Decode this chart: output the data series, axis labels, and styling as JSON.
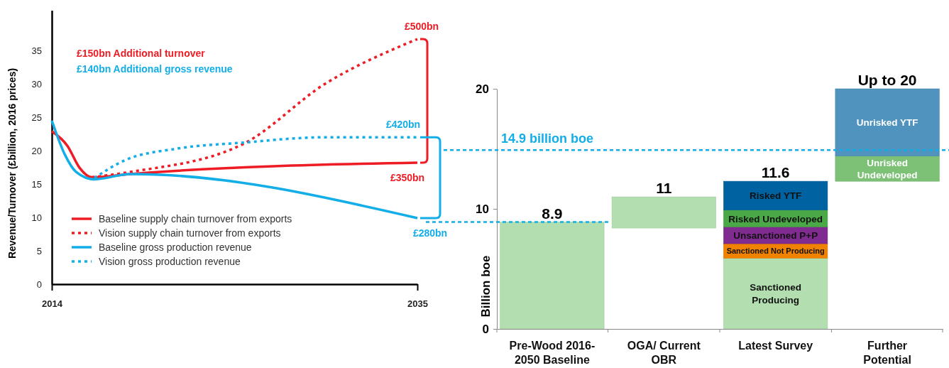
{
  "chart_data": [
    {
      "type": "line",
      "ylabel": "Revenue/Turnover (£billion, 2016 prices)",
      "xlim": [
        2014,
        2035
      ],
      "xticks": [
        2014,
        2035
      ],
      "ylim": [
        0,
        41
      ],
      "yticks": [
        0,
        5,
        10,
        15,
        20,
        25,
        30,
        35
      ],
      "grid": false,
      "legend": "bottom left",
      "marker": "none",
      "series": [
        {
          "name": "Baseline supply chain turnover from exports",
          "color": "#ee1c25",
          "line_style": "solid",
          "x": [
            2014,
            2014.9,
            2015.6,
            2016.3,
            2018.5,
            2035
          ],
          "values": [
            22.9,
            20.7,
            17.4,
            16.0,
            16.5,
            18.2
          ]
        },
        {
          "name": "Vision supply chain turnover from exports",
          "color": "#ee1c25",
          "line_style": "dotted",
          "x": [
            2016.3,
            2018.5,
            2025,
            2029.7,
            2035
          ],
          "values": [
            16.0,
            16.8,
            21.0,
            30.0,
            36.7
          ]
        },
        {
          "name": "Baseline gross production revenue",
          "color": "#13aee8",
          "line_style": "solid",
          "x": [
            2014,
            2014.75,
            2015.4,
            2016.45,
            2018.5,
            2035
          ],
          "values": [
            24.5,
            19.4,
            16.8,
            15.7,
            16.5,
            9.9
          ]
        },
        {
          "name": "Vision gross production revenue",
          "color": "#13aee8",
          "line_style": "dotted",
          "x": [
            2016.45,
            2018.15,
            2021.2,
            2025,
            2029.7,
            2035
          ],
          "values": [
            15.9,
            18.5,
            20.3,
            21.2,
            22.0,
            22.0
          ]
        }
      ],
      "annotations": [
        "£150bn Additional turnover",
        "£140bn Additional gross revenue",
        {
          "text": "£500bn",
          "x": 2035,
          "y": 36.7
        },
        {
          "text": "£350bn",
          "x": 2035,
          "y": 18.2
        },
        {
          "text": "£420bn",
          "x": 2035,
          "y": 22.0
        },
        {
          "text": "£280bn",
          "x": 2035,
          "y": 9.9
        }
      ]
    },
    {
      "type": "bar",
      "ylabel": "Billion boe",
      "categories": [
        "Pre-Wood 2016-2050 Baseline",
        "OGA/ Current OBR",
        "Latest Survey",
        "Further Potential"
      ],
      "ylim": [
        0,
        20
      ],
      "yticks": [
        0,
        10,
        20
      ],
      "grid": false,
      "legend": false,
      "series": [
        {
          "color": "#b3dfb0",
          "values": [
            8.9,
            2.6,
            5.9,
            null
          ],
          "base": [
            0,
            8.4,
            0,
            null
          ]
        },
        {
          "name": "Sanctioned Not Producing",
          "color": "#f08200",
          "values": [
            null,
            null,
            1.2,
            null
          ],
          "base": [
            null,
            null,
            5.9,
            null
          ]
        },
        {
          "name": "Unsanctioned P+P",
          "color": "#7f2b8f",
          "values": [
            null,
            null,
            1.4,
            null
          ],
          "base": [
            null,
            null,
            7.1,
            null
          ]
        },
        {
          "name": "Risked Undeveloped",
          "color": "#4aa847",
          "values": [
            null,
            null,
            1.4,
            null
          ],
          "base": [
            null,
            null,
            8.5,
            null
          ]
        },
        {
          "name": "Risked YTF",
          "color": "#0062a1",
          "values": [
            null,
            null,
            2.4,
            null
          ],
          "base": [
            null,
            null,
            9.9,
            null
          ]
        },
        {
          "name": "Unrisked Undeveloped",
          "color": "#7cc176",
          "values": [
            null,
            null,
            null,
            2.1
          ],
          "base": [
            null,
            null,
            null,
            12.3
          ]
        },
        {
          "name": "Unrisked YTF",
          "color": "#4f93be",
          "values": [
            null,
            null,
            null,
            5.6
          ],
          "base": [
            null,
            null,
            null,
            14.4
          ]
        }
      ],
      "ref_lines": [
        {
          "axis": "y",
          "value": 14.9,
          "label": "14.9 billion boe",
          "color": "#13aee8",
          "line_style": "dashed"
        },
        {
          "axis": "y",
          "value": 8.9,
          "color": "#13aee8",
          "line_style": "dashed"
        }
      ],
      "annotations": [
        {
          "text": "8.9",
          "x": "Pre-Wood 2016-2050 Baseline",
          "y": 8.9
        },
        {
          "text": "11",
          "x": "OGA/ Current OBR",
          "y": 11
        },
        {
          "text": "11.6",
          "x": "Latest Survey",
          "y": 12.3
        },
        {
          "text": "Up to 20",
          "x": "Further Potential",
          "y": 20
        },
        "Sanctioned Producing"
      ]
    }
  ]
}
